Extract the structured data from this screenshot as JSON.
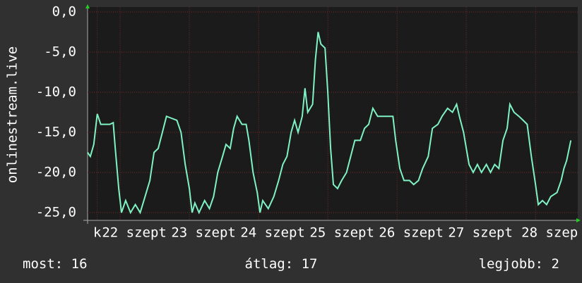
{
  "chart_data": {
    "type": "line",
    "ylabel": "onlinestream.live",
    "x": [
      21.53,
      21.57,
      21.62,
      21.67,
      21.72,
      21.85,
      21.9,
      21.93,
      21.98,
      22.02,
      22.08,
      22.15,
      22.22,
      22.29,
      22.36,
      22.43,
      22.49,
      22.55,
      22.61,
      22.67,
      22.73,
      22.82,
      22.88,
      22.94,
      23.0,
      23.04,
      23.08,
      23.14,
      23.22,
      23.29,
      23.35,
      23.41,
      23.48,
      23.53,
      23.59,
      23.64,
      23.69,
      23.76,
      23.82,
      23.86,
      23.92,
      23.98,
      24.02,
      24.06,
      24.14,
      24.22,
      24.29,
      24.35,
      24.41,
      24.47,
      24.52,
      24.57,
      24.63,
      24.67,
      24.71,
      24.78,
      24.82,
      24.86,
      24.9,
      24.96,
      25.0,
      25.04,
      25.08,
      25.14,
      25.2,
      25.27,
      25.33,
      25.39,
      25.47,
      25.53,
      25.59,
      25.65,
      25.72,
      25.83,
      25.94,
      25.98,
      26.04,
      26.1,
      26.18,
      26.24,
      26.31,
      26.37,
      26.45,
      26.51,
      26.59,
      26.65,
      26.73,
      26.8,
      26.86,
      26.9,
      26.96,
      27.0,
      27.04,
      27.1,
      27.16,
      27.22,
      27.29,
      27.35,
      27.41,
      27.47,
      27.53,
      27.59,
      27.63,
      27.69,
      27.76,
      27.82,
      27.88,
      27.94,
      28.0,
      28.04,
      28.1,
      28.16,
      28.22,
      28.31,
      28.37,
      28.41,
      28.45,
      28.51
    ],
    "series": [
      {
        "name": "onlinestream.live",
        "color": "#7ff2c4",
        "values": [
          -17.5,
          -18,
          -16.5,
          -12.7,
          -14,
          -14,
          -13.8,
          -17,
          -22,
          -25,
          -23.5,
          -25,
          -24,
          -25,
          -23,
          -21,
          -17.5,
          -17,
          -15,
          -13,
          -13.2,
          -13.5,
          -15,
          -19,
          -22,
          -25,
          -23.8,
          -25,
          -23.5,
          -24.5,
          -23,
          -20,
          -18,
          -16.5,
          -17,
          -14.5,
          -13,
          -14,
          -14,
          -16,
          -20,
          -22.5,
          -25,
          -23.5,
          -24.5,
          -23,
          -21,
          -19,
          -18,
          -15,
          -13.5,
          -15,
          -13,
          -9.5,
          -12.5,
          -11.5,
          -6,
          -2.5,
          -4,
          -4.5,
          -10,
          -17,
          -21.5,
          -22,
          -21,
          -20,
          -18,
          -16,
          -16,
          -14.5,
          -14,
          -12,
          -13,
          -13,
          -13,
          -16,
          -19.5,
          -21,
          -21,
          -21.5,
          -21,
          -19.5,
          -18,
          -14.5,
          -14,
          -13,
          -12,
          -12.5,
          -11.5,
          -13,
          -15,
          -17,
          -19,
          -20,
          -19,
          -20,
          -19,
          -20,
          -19,
          -19.5,
          -16,
          -14.5,
          -11.5,
          -12.5,
          -13,
          -13.5,
          -14,
          -18,
          -21.5,
          -24,
          -23.5,
          -24,
          -23,
          -22.5,
          -21,
          -19.5,
          -18.5,
          -16
        ]
      }
    ],
    "xlim": [
      21.53,
      28.61
    ],
    "ylim": [
      -26,
      0.6
    ],
    "xticks": [
      {
        "value": 21.67,
        "label": "k"
      },
      {
        "value": 22,
        "label": "22 szept"
      },
      {
        "value": 23,
        "label": "23 szept"
      },
      {
        "value": 24,
        "label": "24 szept"
      },
      {
        "value": 25,
        "label": "25 szept"
      },
      {
        "value": 26,
        "label": "26 szept"
      },
      {
        "value": 27,
        "label": "27 szept"
      },
      {
        "value": 28,
        "label": "28 szep"
      }
    ],
    "yticks": [
      {
        "value": 0,
        "label": "0,0"
      },
      {
        "value": -5,
        "label": "-5,0"
      },
      {
        "value": -10,
        "label": "-10,0"
      },
      {
        "value": -15,
        "label": "-15,0"
      },
      {
        "value": -20,
        "label": "-20,0"
      },
      {
        "value": -25,
        "label": "-25,0"
      }
    ],
    "grid": true,
    "stats": [
      {
        "label": "most:",
        "value": 16
      },
      {
        "label": "átlag:",
        "value": 17
      },
      {
        "label": "legjobb:",
        "value": 2
      }
    ]
  }
}
